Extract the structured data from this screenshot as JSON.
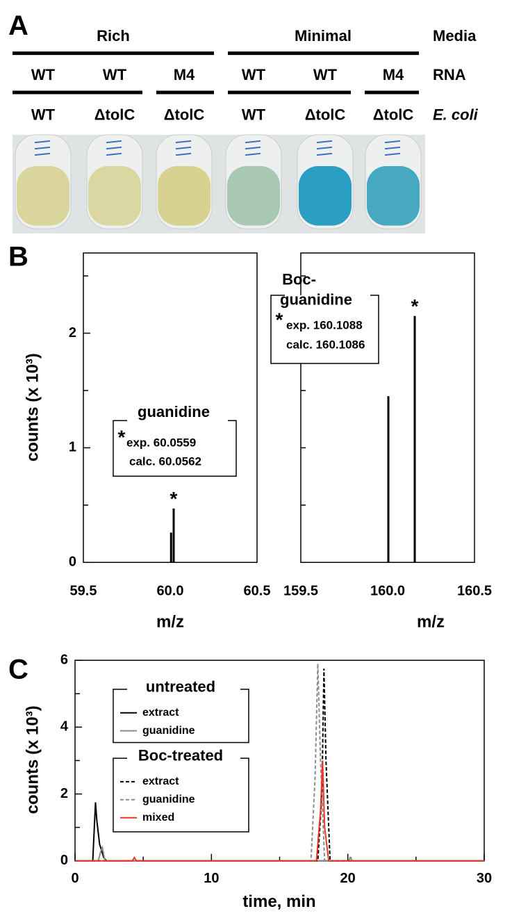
{
  "panel_a": {
    "label": "A",
    "media": {
      "title": "Media",
      "groups": [
        "Rich",
        "Minimal"
      ]
    },
    "rna": {
      "title": "RNA",
      "values": [
        "WT",
        "WT",
        "M4",
        "WT",
        "WT",
        "M4"
      ]
    },
    "strain": {
      "title": "E. coli",
      "values": [
        "WT",
        "ΔtolC",
        "ΔtolC",
        "WT",
        "ΔtolC",
        "ΔtolC"
      ]
    }
  },
  "chart_data": [
    {
      "type": "stick",
      "panel": "B",
      "ylabel": "counts (x 10³)",
      "xlabel": "m/z",
      "x": [
        60.005,
        60.02
      ],
      "values": [
        0.26,
        0.47
      ],
      "color": "#000000",
      "xlim": [
        59.5,
        60.5
      ],
      "ylim": [
        0,
        2.7
      ],
      "xticks": [
        59.5,
        {
          "value": 60,
          "label": "60.0"
        },
        60.5
      ],
      "yticks": [
        0,
        1,
        2
      ],
      "minor_yticks": [
        0.5,
        1.5,
        2.5
      ],
      "annotation": {
        "title": [
          "guanidine"
        ],
        "marker": "*",
        "exp": "exp. 60.0559",
        "calc": "calc. 60.0562",
        "peak_marker": "*"
      }
    },
    {
      "type": "stick",
      "xlabel": "m/z",
      "x": [
        160.004,
        160.156
      ],
      "values": [
        1.45,
        2.15
      ],
      "color": "#000000",
      "xlim": [
        159.5,
        160.5
      ],
      "ylim": [
        0,
        2.7
      ],
      "xticks": [
        159.5,
        {
          "value": 160,
          "label": "160.0"
        },
        160.5
      ],
      "minor_yticks": [
        0,
        0.5,
        1,
        1.5,
        2,
        2.5
      ],
      "annotation": {
        "title": [
          "Boc-",
          "guanidine"
        ],
        "marker": "*",
        "exp": "exp. 160.1088",
        "calc": "calc. 160.1086",
        "peak_marker": "*"
      }
    },
    {
      "type": "line",
      "panel": "C",
      "ylabel": "counts (x 10³)",
      "xlabel": "time, min",
      "xlim": [
        0,
        30
      ],
      "ylim": [
        0,
        6
      ],
      "xticks": [
        0,
        10,
        20,
        30
      ],
      "minor_xticks": [
        5,
        15,
        25
      ],
      "yticks": [
        0,
        2,
        4,
        6
      ],
      "minor_yticks": [
        1,
        3,
        5
      ],
      "groups": [
        {
          "title": "untreated",
          "series": [
            {
              "name": "extract",
              "color": "#000000",
              "dash": false,
              "x": [
                0,
                1.3,
                1.5,
                1.6,
                1.8,
                2.1,
                2.3,
                30
              ],
              "values": [
                0,
                0,
                1.75,
                1.2,
                0.5,
                0.1,
                0,
                0
              ]
            },
            {
              "name": "guanidine",
              "color": "#8c8c8c",
              "dash": false,
              "x": [
                0,
                1.7,
                1.9,
                2.0,
                2.2,
                30
              ],
              "values": [
                0,
                0,
                0.3,
                0.4,
                0,
                0
              ]
            }
          ]
        },
        {
          "title": "Boc-treated",
          "series": [
            {
              "name": "extract",
              "color": "#000000",
              "dash": true,
              "x": [
                0,
                17.8,
                18.1,
                18.25,
                18.4,
                18.7,
                30
              ],
              "values": [
                0,
                0,
                2,
                5.75,
                3,
                0,
                0
              ]
            },
            {
              "name": "guanidine",
              "color": "#8c8c8c",
              "dash": true,
              "x": [
                0,
                17.3,
                17.6,
                17.8,
                18.0,
                18.3,
                20.1,
                20.2,
                20.3,
                30
              ],
              "values": [
                0,
                0,
                2.5,
                5.9,
                3,
                0,
                0,
                0.15,
                0,
                0
              ]
            },
            {
              "name": "mixed",
              "color": "#e8392b",
              "dash": false,
              "x": [
                0,
                4.2,
                4.35,
                4.5,
                17.7,
                18.0,
                18.15,
                18.3,
                18.6,
                30
              ],
              "values": [
                0,
                0,
                0.1,
                0,
                0,
                1.5,
                3.0,
                1.0,
                0,
                0
              ]
            }
          ]
        }
      ]
    }
  ]
}
